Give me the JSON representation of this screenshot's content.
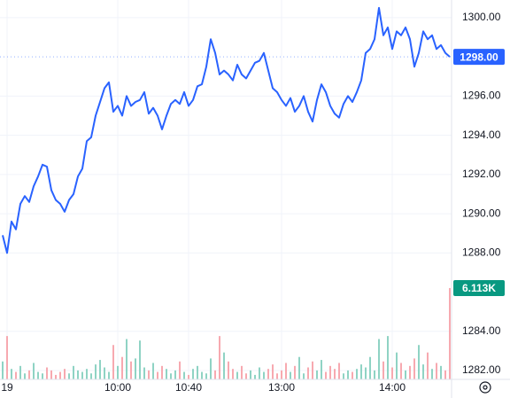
{
  "chart_data": {
    "type": "line",
    "categories": [
      null,
      "19",
      null,
      null,
      null,
      null,
      null,
      null,
      null,
      null,
      null,
      null,
      null,
      null,
      null,
      null,
      null,
      null,
      null,
      null,
      null,
      null,
      null,
      null,
      null,
      null,
      "10:00",
      null,
      null,
      null,
      null,
      null,
      null,
      null,
      null,
      null,
      null,
      null,
      null,
      null,
      null,
      null,
      "10:40",
      null,
      null,
      null,
      null,
      null,
      null,
      null,
      null,
      null,
      null,
      null,
      null,
      null,
      null,
      null,
      null,
      null,
      null,
      null,
      null,
      "13:00",
      null,
      null,
      null,
      null,
      null,
      null,
      null,
      null,
      null,
      null,
      null,
      null,
      null,
      null,
      null,
      null,
      null,
      null,
      null,
      null,
      null,
      null,
      null,
      null,
      "14:00",
      null,
      null,
      null,
      null,
      null,
      null,
      null,
      null,
      null,
      null,
      null,
      null,
      null
    ],
    "series": [
      {
        "color": "#2962ff",
        "values": [
          1288.9,
          1288.0,
          1289.6,
          1289.2,
          1290.5,
          1290.9,
          1290.6,
          1291.4,
          1291.9,
          1292.5,
          1292.4,
          1291.2,
          1290.7,
          1290.5,
          1290.1,
          1290.7,
          1291.0,
          1291.9,
          1292.3,
          1293.7,
          1293.9,
          1295.0,
          1295.7,
          1296.4,
          1296.7,
          1295.2,
          1295.5,
          1295.0,
          1296.0,
          1295.5,
          1295.7,
          1295.8,
          1296.2,
          1295.1,
          1295.4,
          1295.0,
          1294.3,
          1295.0,
          1295.6,
          1295.8,
          1295.6,
          1296.2,
          1295.5,
          1295.8,
          1296.5,
          1296.6,
          1297.5,
          1298.9,
          1298.2,
          1297.1,
          1297.3,
          1297.1,
          1296.8,
          1297.6,
          1297.1,
          1296.9,
          1297.3,
          1297.7,
          1297.8,
          1298.2,
          1297.3,
          1296.4,
          1296.2,
          1295.8,
          1295.5,
          1295.9,
          1295.2,
          1295.5,
          1296.0,
          1295.2,
          1294.7,
          1295.8,
          1296.6,
          1296.2,
          1295.5,
          1295.1,
          1294.9,
          1295.6,
          1296.0,
          1295.7,
          1296.2,
          1296.8,
          1298.2,
          1298.4,
          1298.9,
          1300.5,
          1299.1,
          1299.5,
          1298.4,
          1299.3,
          1299.1,
          1299.5,
          1298.9,
          1297.5,
          1298.2,
          1299.3,
          1298.9,
          1299.1,
          1298.4,
          1298.6,
          1298.2,
          1298.0
        ]
      }
    ],
    "volume": {
      "up_color": "#8fd3c4",
      "down_color": "#f7a9b0",
      "vlim": [
        0,
        7000
      ],
      "values": [
        1200,
        2900,
        700,
        500,
        900,
        400,
        600,
        1100,
        500,
        400,
        800,
        600,
        300,
        500,
        700,
        400,
        900,
        600,
        500,
        700,
        400,
        1000,
        1300,
        800,
        500,
        2300,
        900,
        1500,
        2700,
        1200,
        1400,
        2600,
        800,
        600,
        1100,
        500,
        900,
        700,
        400,
        600,
        1200,
        500,
        300,
        700,
        900,
        500,
        400,
        1400,
        600,
        2900,
        1800,
        1200,
        700,
        500,
        900,
        400,
        600,
        300,
        800,
        500,
        700,
        1000,
        400,
        600,
        1100,
        500,
        900,
        1500,
        400,
        800,
        1200,
        600,
        1300,
        500,
        900,
        700,
        1100,
        400,
        600,
        500,
        700,
        1000,
        800,
        1500,
        600,
        2700,
        1200,
        2900,
        800,
        1800,
        1100,
        600,
        900,
        1400,
        2300,
        1000,
        1800,
        700,
        1100,
        900,
        600,
        6113
      ]
    },
    "price_label": {
      "value": 1298,
      "label": "1298.00",
      "color": "#2962ff"
    },
    "volume_label": {
      "value": 6113,
      "label": "6.113K",
      "color": "#089981"
    },
    "ylim": [
      1281.55,
      1300.9
    ],
    "yticks": [
      {
        "value": 1282,
        "label": "1282.00"
      },
      {
        "value": 1284,
        "label": "1284.00"
      },
      {
        "value": 1288,
        "label": "1288.00"
      },
      {
        "value": 1290,
        "label": "1290.00"
      },
      {
        "value": 1292,
        "label": "1292.00"
      },
      {
        "value": 1294,
        "label": "1294.00"
      },
      {
        "value": 1296,
        "label": "1296.00"
      },
      {
        "value": 1300,
        "label": "1300.00"
      }
    ],
    "grid": true
  }
}
